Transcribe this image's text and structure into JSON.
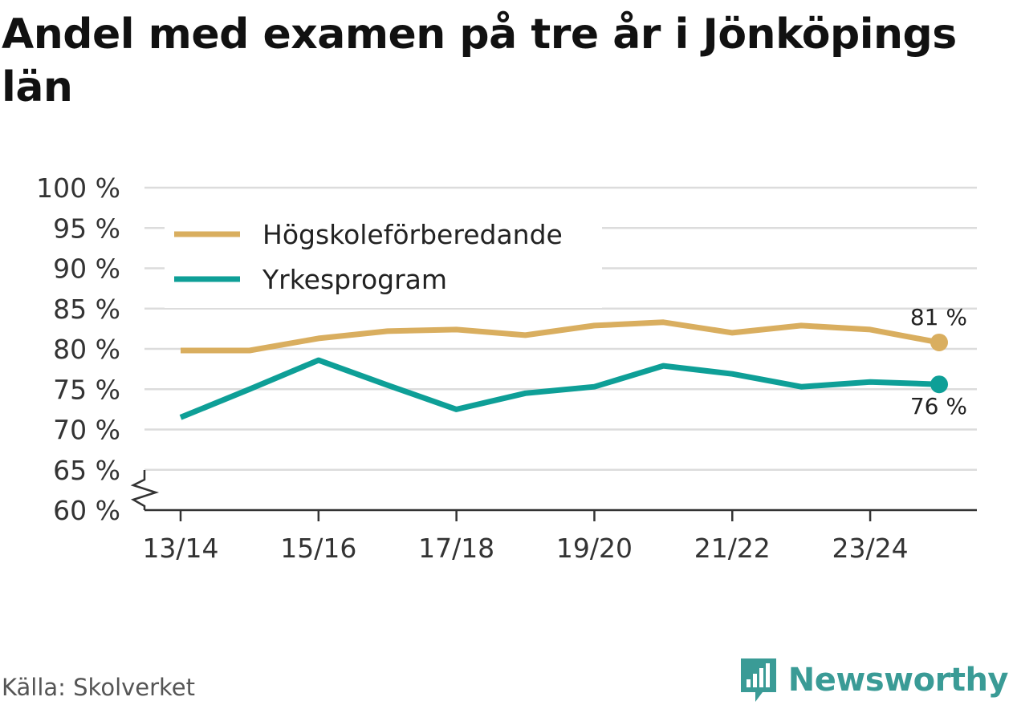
{
  "title": "Andel med examen på tre år i Jönköpings län",
  "source": "Källa: Skolverket",
  "brand": {
    "name": "Newsworthy",
    "icon": "bar-chart-speech-bubble-icon",
    "color": "#3a9b96"
  },
  "chart_data": {
    "type": "line",
    "title": "Andel med examen på tre år i Jönköpings län",
    "x": [
      "13/14",
      "14/15",
      "15/16",
      "16/17",
      "17/18",
      "18/19",
      "19/20",
      "20/21",
      "21/22",
      "22/23",
      "23/24",
      "24/25"
    ],
    "x_tick_labels": [
      "13/14",
      "15/16",
      "17/18",
      "19/20",
      "21/22",
      "23/24"
    ],
    "y_ticks": [
      60,
      65,
      70,
      75,
      80,
      85,
      90,
      95,
      100
    ],
    "y_tick_suffix": " %",
    "ylim": [
      60,
      100
    ],
    "y_axis_break": true,
    "grid": true,
    "legend_position": "top-left",
    "series": [
      {
        "name": "Högskoleförberedande",
        "color": "#d9ae5f",
        "values": [
          79.8,
          79.8,
          81.3,
          82.2,
          82.4,
          81.7,
          82.9,
          83.3,
          82.0,
          82.9,
          82.4,
          80.8
        ],
        "end_label": "81 %"
      },
      {
        "name": "Yrkesprogram",
        "color": "#0e9f97",
        "values": [
          71.5,
          75.0,
          78.6,
          75.5,
          72.5,
          74.5,
          75.3,
          77.9,
          76.9,
          75.3,
          75.9,
          75.6
        ],
        "end_label": "76 %"
      }
    ]
  }
}
